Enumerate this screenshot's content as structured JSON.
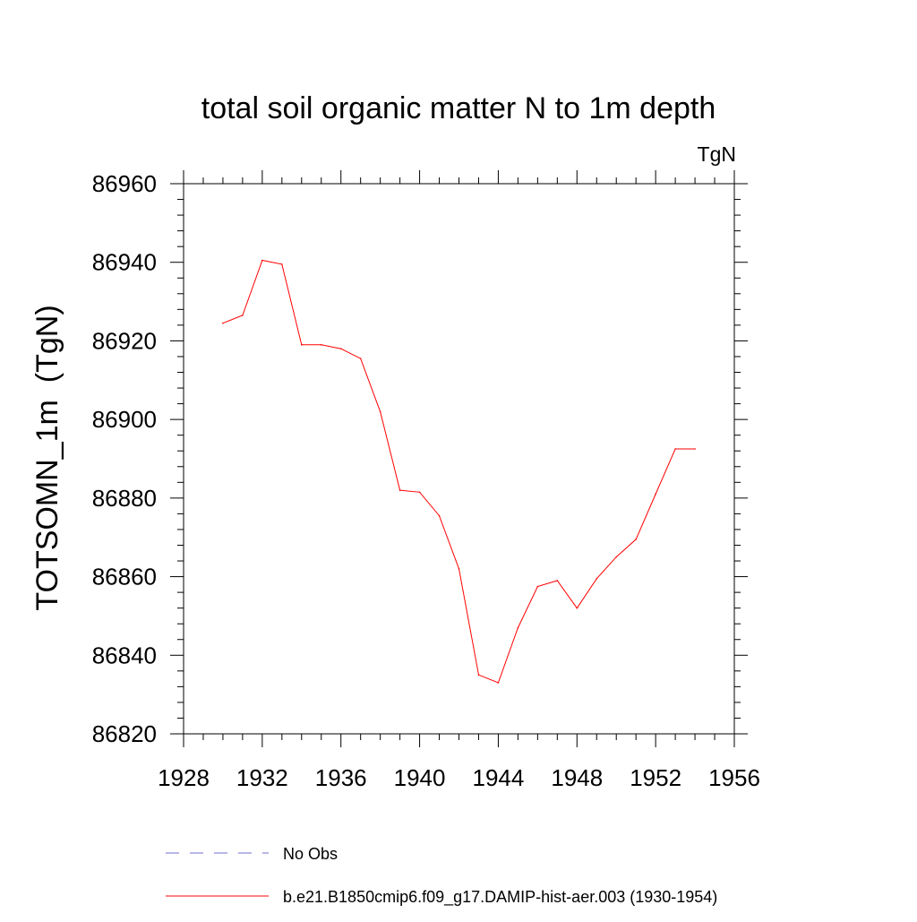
{
  "chart_data": {
    "type": "line",
    "title": "total soil organic matter N to 1m depth",
    "units": "TgN",
    "ylabel": "TOTSOMN_1m  (TgN)",
    "xlabel": "",
    "xlim": [
      1928,
      1956
    ],
    "ylim": [
      86820,
      86960
    ],
    "x_ticks": [
      "1928",
      "1932",
      "1936",
      "1940",
      "1944",
      "1948",
      "1952",
      "1956"
    ],
    "y_ticks": [
      "86820",
      "86840",
      "86860",
      "86880",
      "86900",
      "86920",
      "86940",
      "86960"
    ],
    "grid": false,
    "legend_position": "bottom",
    "series": [
      {
        "name": "b.e21.B1850cmip6.f09_g17.DAMIP-hist-aer.003 (1930-1954)",
        "color": "#ff0000",
        "style": "solid",
        "x": [
          1930,
          1931,
          1932,
          1933,
          1934,
          1935,
          1936,
          1937,
          1938,
          1939,
          1940,
          1941,
          1942,
          1943,
          1944,
          1945,
          1946,
          1947,
          1948,
          1949,
          1950,
          1951,
          1952,
          1953,
          1954
        ],
        "values": [
          86924.5,
          86926.5,
          86940.5,
          86939.5,
          86919.0,
          86919.0,
          86918.0,
          86915.5,
          86902.0,
          86882.0,
          86881.5,
          86875.5,
          86862.0,
          86835.0,
          86833.0,
          86847.0,
          86857.5,
          86859.0,
          86852.0,
          86859.5,
          86865.0,
          86869.5,
          86881.0,
          86892.5,
          86892.5
        ]
      }
    ],
    "legend": [
      {
        "label": "No Obs",
        "color": "#6f6fcf",
        "style": "dashed"
      },
      {
        "label": "b.e21.B1850cmip6.f09_g17.DAMIP-hist-aer.003 (1930-1954)",
        "color": "#ff0000",
        "style": "solid"
      }
    ]
  }
}
